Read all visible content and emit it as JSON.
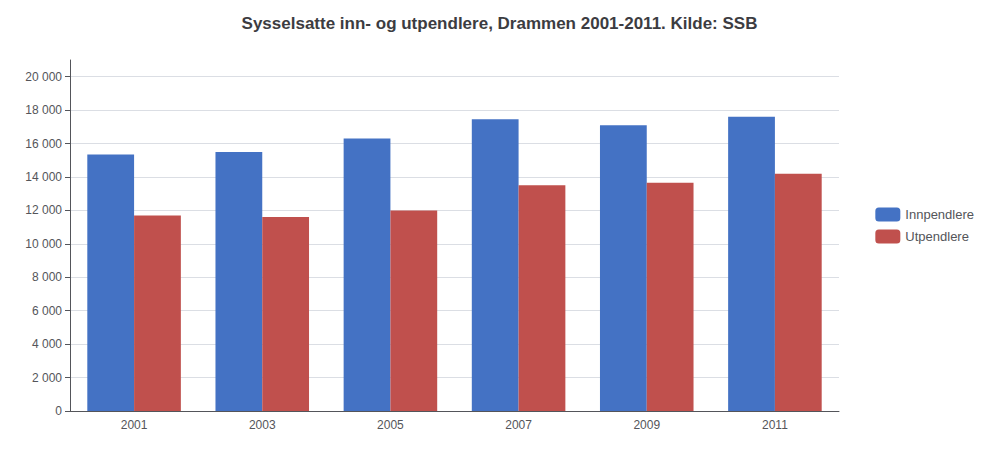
{
  "chart_data": {
    "type": "bar",
    "title": "Sysselsatte inn- og utpendlere, Drammen 2001-2011. Kilde: SSB",
    "categories": [
      "2001",
      "2003",
      "2005",
      "2007",
      "2009",
      "2011"
    ],
    "series": [
      {
        "name": "Innpendlere",
        "color": "#4472C4",
        "values": [
          15350,
          15500,
          16300,
          17450,
          17100,
          17600
        ]
      },
      {
        "name": "Utpendlere",
        "color": "#C0504D",
        "values": [
          11700,
          11600,
          12000,
          13500,
          13650,
          14200
        ]
      }
    ],
    "ylim": [
      0,
      21000
    ],
    "yticks": [
      0,
      {
        "value": 2000,
        "label": "2 000"
      },
      {
        "value": 4000,
        "label": "4 000"
      },
      {
        "value": 6000,
        "label": "6 000"
      },
      {
        "value": 8000,
        "label": "8 000"
      },
      {
        "value": 10000,
        "label": "10 000"
      },
      {
        "value": 12000,
        "label": "12 000"
      },
      {
        "value": 14000,
        "label": "14 000"
      },
      {
        "value": 16000,
        "label": "16 000"
      },
      {
        "value": 18000,
        "label": "18 000"
      },
      {
        "value": 20000,
        "label": "20 000"
      }
    ],
    "grid": true,
    "legend": "right"
  }
}
